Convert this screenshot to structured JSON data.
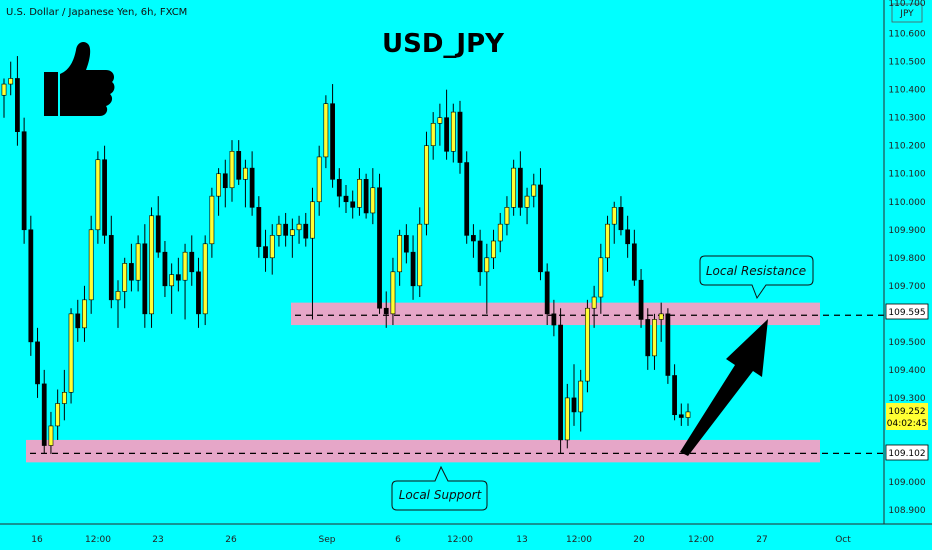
{
  "symbol_line": "U.S. Dollar / Japanese Yen, 6h, FXCM",
  "currency_label": "JPY",
  "top_cut_label": "110.700",
  "icons": {
    "thumbs_up": "thumbs-up-icon"
  },
  "colors": {
    "background": "#00ffff",
    "candle_up": "#ffff33",
    "candle_down": "#000000",
    "zone_fill": "#e6a6c8",
    "last_price_bg": "#ffff33"
  },
  "annotations": {
    "resistance_label": "Local Resistance",
    "support_label": "Local Support"
  },
  "price_tags": {
    "resistance": "109.595",
    "support": "109.102",
    "last_price": "109.252",
    "countdown": "04:02:45"
  },
  "chart_data": {
    "type": "candlestick",
    "title": "USD_JPY",
    "x_ticks": [
      "16",
      "12:00",
      "23",
      "26",
      "Sep",
      "6",
      "12:00",
      "13",
      "12:00",
      "20",
      "12:00",
      "27",
      "Oct"
    ],
    "y_ticks": [
      "110.600",
      "110.500",
      "110.400",
      "110.300",
      "110.200",
      "110.100",
      "110.000",
      "109.900",
      "109.800",
      "109.700",
      "109.600",
      "109.500",
      "109.400",
      "109.300",
      "109.200",
      "109.100",
      "109.000",
      "108.900"
    ],
    "ylim": [
      108.85,
      110.72
    ],
    "levels": [
      {
        "name": "Local Resistance",
        "value": 109.595,
        "zone": [
          109.56,
          109.64
        ]
      },
      {
        "name": "Local Support",
        "value": 109.102,
        "zone": [
          109.07,
          109.15
        ]
      }
    ],
    "last_price": 109.252,
    "candles": [
      [
        110.38,
        110.44,
        110.3,
        110.42
      ],
      [
        110.42,
        110.5,
        110.38,
        110.44
      ],
      [
        110.44,
        110.52,
        110.2,
        110.25
      ],
      [
        110.25,
        110.3,
        109.85,
        109.9
      ],
      [
        109.9,
        109.95,
        109.45,
        109.5
      ],
      [
        109.5,
        109.55,
        109.3,
        109.35
      ],
      [
        109.35,
        109.4,
        109.1,
        109.13
      ],
      [
        109.13,
        109.25,
        109.1,
        109.2
      ],
      [
        109.2,
        109.33,
        109.15,
        109.28
      ],
      [
        109.28,
        109.4,
        109.22,
        109.32
      ],
      [
        109.32,
        109.62,
        109.28,
        109.6
      ],
      [
        109.6,
        109.65,
        109.5,
        109.55
      ],
      [
        109.55,
        109.7,
        109.5,
        109.65
      ],
      [
        109.65,
        109.95,
        109.6,
        109.9
      ],
      [
        109.9,
        110.18,
        109.85,
        110.15
      ],
      [
        110.15,
        110.2,
        109.85,
        109.88
      ],
      [
        109.88,
        109.95,
        109.62,
        109.65
      ],
      [
        109.65,
        109.72,
        109.55,
        109.68
      ],
      [
        109.68,
        109.8,
        109.62,
        109.78
      ],
      [
        109.78,
        109.85,
        109.68,
        109.72
      ],
      [
        109.72,
        109.88,
        109.68,
        109.85
      ],
      [
        109.85,
        109.92,
        109.55,
        109.6
      ],
      [
        109.6,
        109.98,
        109.55,
        109.95
      ],
      [
        109.95,
        110.02,
        109.8,
        109.82
      ],
      [
        109.82,
        109.86,
        109.66,
        109.7
      ],
      [
        109.7,
        109.78,
        109.6,
        109.74
      ],
      [
        109.74,
        109.8,
        109.68,
        109.72
      ],
      [
        109.72,
        109.85,
        109.58,
        109.82
      ],
      [
        109.82,
        109.88,
        109.7,
        109.75
      ],
      [
        109.75,
        109.8,
        109.55,
        109.6
      ],
      [
        109.6,
        109.88,
        109.56,
        109.85
      ],
      [
        109.85,
        110.05,
        109.8,
        110.02
      ],
      [
        110.02,
        110.12,
        109.95,
        110.1
      ],
      [
        110.1,
        110.15,
        109.98,
        110.05
      ],
      [
        110.05,
        110.22,
        110.0,
        110.18
      ],
      [
        110.18,
        110.22,
        110.06,
        110.08
      ],
      [
        110.08,
        110.15,
        109.98,
        110.12
      ],
      [
        110.12,
        110.18,
        109.95,
        109.98
      ],
      [
        109.98,
        110.02,
        109.8,
        109.84
      ],
      [
        109.84,
        109.9,
        109.75,
        109.8
      ],
      [
        109.8,
        109.92,
        109.74,
        109.88
      ],
      [
        109.88,
        109.95,
        109.84,
        109.92
      ],
      [
        109.92,
        109.96,
        109.84,
        109.88
      ],
      [
        109.88,
        109.94,
        109.8,
        109.9
      ],
      [
        109.9,
        109.95,
        109.85,
        109.92
      ],
      [
        109.92,
        109.96,
        109.84,
        109.87
      ],
      [
        109.87,
        110.05,
        109.58,
        110.0
      ],
      [
        110.0,
        110.2,
        109.95,
        110.16
      ],
      [
        110.16,
        110.38,
        110.12,
        110.35
      ],
      [
        110.35,
        110.42,
        110.05,
        110.08
      ],
      [
        110.08,
        110.12,
        109.98,
        110.02
      ],
      [
        110.02,
        110.06,
        109.96,
        110.0
      ],
      [
        110.0,
        110.04,
        109.94,
        109.98
      ],
      [
        109.98,
        110.12,
        109.95,
        110.08
      ],
      [
        110.08,
        110.1,
        109.94,
        109.96
      ],
      [
        109.96,
        110.12,
        109.92,
        110.05
      ],
      [
        110.05,
        110.1,
        109.6,
        109.62
      ],
      [
        109.62,
        109.68,
        109.55,
        109.6
      ],
      [
        109.6,
        109.8,
        109.56,
        109.75
      ],
      [
        109.75,
        109.9,
        109.7,
        109.88
      ],
      [
        109.88,
        109.92,
        109.78,
        109.82
      ],
      [
        109.82,
        109.88,
        109.65,
        109.7
      ],
      [
        109.7,
        109.98,
        109.66,
        109.92
      ],
      [
        109.92,
        110.25,
        109.88,
        110.2
      ],
      [
        110.2,
        110.32,
        110.15,
        110.28
      ],
      [
        110.28,
        110.35,
        110.2,
        110.3
      ],
      [
        110.3,
        110.4,
        110.15,
        110.18
      ],
      [
        110.18,
        110.35,
        110.14,
        110.32
      ],
      [
        110.32,
        110.36,
        110.1,
        110.14
      ],
      [
        110.14,
        110.18,
        109.85,
        109.88
      ],
      [
        109.88,
        109.92,
        109.8,
        109.86
      ],
      [
        109.86,
        109.9,
        109.7,
        109.75
      ],
      [
        109.75,
        109.85,
        109.6,
        109.8
      ],
      [
        109.8,
        109.9,
        109.76,
        109.86
      ],
      [
        109.86,
        109.96,
        109.82,
        109.92
      ],
      [
        109.92,
        110.02,
        109.88,
        109.98
      ],
      [
        109.98,
        110.15,
        109.95,
        110.12
      ],
      [
        110.12,
        110.18,
        109.95,
        109.98
      ],
      [
        109.98,
        110.05,
        109.92,
        110.02
      ],
      [
        110.02,
        110.1,
        109.98,
        110.06
      ],
      [
        110.06,
        110.12,
        109.72,
        109.75
      ],
      [
        109.75,
        109.78,
        109.56,
        109.6
      ],
      [
        109.6,
        109.65,
        109.52,
        109.56
      ],
      [
        109.56,
        109.62,
        109.1,
        109.15
      ],
      [
        109.15,
        109.35,
        109.12,
        109.3
      ],
      [
        109.3,
        109.42,
        109.2,
        109.25
      ],
      [
        109.25,
        109.4,
        109.18,
        109.36
      ],
      [
        109.36,
        109.65,
        109.32,
        109.62
      ],
      [
        109.62,
        109.7,
        109.55,
        109.66
      ],
      [
        109.66,
        109.85,
        109.6,
        109.8
      ],
      [
        109.8,
        109.95,
        109.75,
        109.92
      ],
      [
        109.92,
        110.0,
        109.85,
        109.98
      ],
      [
        109.98,
        110.02,
        109.88,
        109.9
      ],
      [
        109.9,
        109.95,
        109.8,
        109.85
      ],
      [
        109.85,
        109.9,
        109.7,
        109.72
      ],
      [
        109.72,
        109.76,
        109.55,
        109.58
      ],
      [
        109.58,
        109.62,
        109.4,
        109.45
      ],
      [
        109.45,
        109.6,
        109.4,
        109.58
      ],
      [
        109.58,
        109.64,
        109.5,
        109.6
      ],
      [
        109.6,
        109.62,
        109.35,
        109.38
      ],
      [
        109.38,
        109.42,
        109.22,
        109.24
      ],
      [
        109.24,
        109.28,
        109.2,
        109.23
      ],
      [
        109.23,
        109.28,
        109.2,
        109.25
      ]
    ]
  }
}
